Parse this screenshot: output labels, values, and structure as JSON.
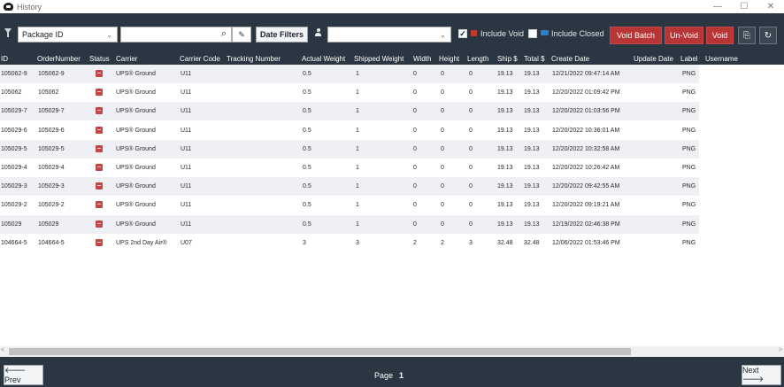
{
  "window": {
    "title": "History",
    "minimize": "—",
    "maximize": "☐",
    "close": "✕"
  },
  "toolbar": {
    "field_select": "Package ID",
    "search_value": "",
    "date_filters_label": "Date Filters",
    "user_select": "",
    "include_void_label": "Include Void",
    "include_void_checked": "✓",
    "include_closed_label": "Include Closed",
    "include_closed_checked": "",
    "void_batch_label": "Void Batch",
    "unvoid_label": "Un-Void",
    "void_label": "Void",
    "export_icon": "⎘",
    "refresh_icon": "↻",
    "search_icon": "⌕",
    "clear_icon": "✎"
  },
  "columns": [
    "ID",
    "OrderNumber",
    "Status",
    "Carrier",
    "Carrier Code",
    "Tracking Number",
    "Actual Weight",
    "Shipped Weight",
    "Width",
    "Height",
    "Length",
    "Ship $",
    "Total $",
    "Create Date",
    "Update Date",
    "Label",
    "Username"
  ],
  "rows": [
    {
      "id": "105062-9",
      "order": "105062-9",
      "carrier": "UPS® Ground",
      "code": "U11",
      "tracking": "",
      "aw": "0.5",
      "sw": "1",
      "w": "0",
      "h": "0",
      "l": "0",
      "ship": "19.13",
      "total": "19.13",
      "created": "12/21/2022 09:47:14 AM",
      "updated": "",
      "label": "PNG",
      "user": ""
    },
    {
      "id": "105062",
      "order": "105062",
      "carrier": "UPS® Ground",
      "code": "U11",
      "tracking": "",
      "aw": "0.5",
      "sw": "1",
      "w": "0",
      "h": "0",
      "l": "0",
      "ship": "19.13",
      "total": "19.13",
      "created": "12/20/2022 01:09:42 PM",
      "updated": "",
      "label": "PNG",
      "user": ""
    },
    {
      "id": "105029-7",
      "order": "105029-7",
      "carrier": "UPS® Ground",
      "code": "U11",
      "tracking": "",
      "aw": "0.5",
      "sw": "1",
      "w": "0",
      "h": "0",
      "l": "0",
      "ship": "19.13",
      "total": "19.13",
      "created": "12/20/2022 01:03:56 PM",
      "updated": "",
      "label": "PNG",
      "user": ""
    },
    {
      "id": "105029-6",
      "order": "105029-6",
      "carrier": "UPS® Ground",
      "code": "U11",
      "tracking": "",
      "aw": "0.5",
      "sw": "1",
      "w": "0",
      "h": "0",
      "l": "0",
      "ship": "19.13",
      "total": "19.13",
      "created": "12/20/2022 10:36:01 AM",
      "updated": "",
      "label": "PNG",
      "user": ""
    },
    {
      "id": "105029-5",
      "order": "105029-5",
      "carrier": "UPS® Ground",
      "code": "U11",
      "tracking": "",
      "aw": "0.5",
      "sw": "1",
      "w": "0",
      "h": "0",
      "l": "0",
      "ship": "19.13",
      "total": "19.13",
      "created": "12/20/2022 10:32:58 AM",
      "updated": "",
      "label": "PNG",
      "user": ""
    },
    {
      "id": "105029-4",
      "order": "105029-4",
      "carrier": "UPS® Ground",
      "code": "U11",
      "tracking": "",
      "aw": "0.5",
      "sw": "1",
      "w": "0",
      "h": "0",
      "l": "0",
      "ship": "19.13",
      "total": "19.13",
      "created": "12/20/2022 10:26:42 AM",
      "updated": "",
      "label": "PNG",
      "user": ""
    },
    {
      "id": "105029-3",
      "order": "105029-3",
      "carrier": "UPS® Ground",
      "code": "U11",
      "tracking": "",
      "aw": "0.5",
      "sw": "1",
      "w": "0",
      "h": "0",
      "l": "0",
      "ship": "19.13",
      "total": "19.13",
      "created": "12/20/2022 09:42:55 AM",
      "updated": "",
      "label": "PNG",
      "user": ""
    },
    {
      "id": "105029-2",
      "order": "105029-2",
      "carrier": "UPS® Ground",
      "code": "U11",
      "tracking": "",
      "aw": "0.5",
      "sw": "1",
      "w": "0",
      "h": "0",
      "l": "0",
      "ship": "19.13",
      "total": "19.13",
      "created": "12/20/2022 09:19:21 AM",
      "updated": "",
      "label": "PNG",
      "user": ""
    },
    {
      "id": "105029",
      "order": "105029",
      "carrier": "UPS® Ground",
      "code": "U11",
      "tracking": "",
      "aw": "0.5",
      "sw": "1",
      "w": "0",
      "h": "0",
      "l": "0",
      "ship": "19.13",
      "total": "19.13",
      "created": "12/19/2022 02:46:38 PM",
      "updated": "",
      "label": "PNG",
      "user": ""
    },
    {
      "id": "104664-5",
      "order": "104664-5",
      "carrier": "UPS 2nd Day Air®",
      "code": "U07",
      "tracking": "",
      "aw": "3",
      "sw": "3",
      "w": "2",
      "h": "2",
      "l": "3",
      "ship": "32.48",
      "total": "32.48",
      "created": "12/06/2022 01:53:46 PM",
      "updated": "",
      "label": "PNG",
      "user": ""
    }
  ],
  "footer": {
    "prev_label": "🡐 Prev",
    "page_label": "Page",
    "page_number": "1",
    "next_label": "Next 🡒"
  },
  "colors": {
    "dark": "#2a3641",
    "red": "#b83535",
    "row_alt": "#eef0f3"
  }
}
